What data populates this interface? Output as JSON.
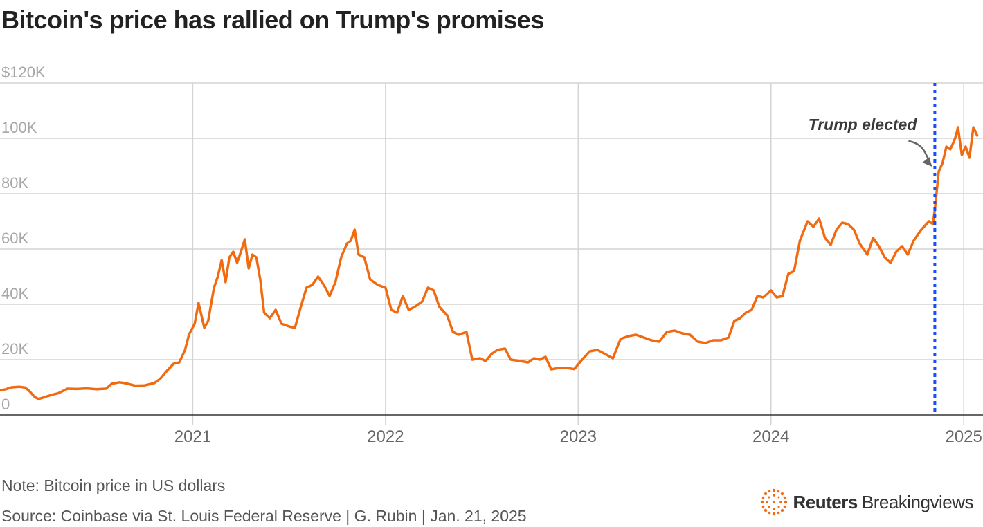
{
  "header": {
    "title": "Bitcoin's price has rallied on Trump's promises"
  },
  "footer": {
    "note": "Note: Bitcoin price in US dollars",
    "source": "Source: Coinbase via St. Louis Federal Reserve | G. Rubin | Jan. 21, 2025",
    "brand_primary": "Reuters",
    "brand_secondary": "Breakingviews"
  },
  "colors": {
    "line": "#f26a10",
    "event_line": "#1a4cff",
    "grid": "#d4d4d4",
    "axis": "#333333"
  },
  "chart_data": {
    "type": "line",
    "title": "Bitcoin's price has rallied on Trump's promises",
    "xlabel": "",
    "ylabel": "Bitcoin price in US dollars",
    "ylim": [
      0,
      120000
    ],
    "y_ticks": [
      {
        "value": 0,
        "label": "0"
      },
      {
        "value": 20000,
        "label": "20K"
      },
      {
        "value": 40000,
        "label": "40K"
      },
      {
        "value": 60000,
        "label": "60K"
      },
      {
        "value": 80000,
        "label": "80K"
      },
      {
        "value": 100000,
        "label": "100K"
      },
      {
        "value": 120000,
        "label": "$120K"
      }
    ],
    "xlim": [
      2020.0,
      2025.1
    ],
    "x_ticks": [
      {
        "value": 2021,
        "label": "2021"
      },
      {
        "value": 2022,
        "label": "2022"
      },
      {
        "value": 2023,
        "label": "2023"
      },
      {
        "value": 2024,
        "label": "2024"
      },
      {
        "value": 2025,
        "label": "2025"
      }
    ],
    "annotation": {
      "label": "Trump elected",
      "x": 2024.85
    },
    "series": [
      {
        "name": "Bitcoin price",
        "points": [
          [
            2020.0,
            8900
          ],
          [
            2020.03,
            9300
          ],
          [
            2020.06,
            10000
          ],
          [
            2020.1,
            10200
          ],
          [
            2020.13,
            9900
          ],
          [
            2020.15,
            8800
          ],
          [
            2020.18,
            6500
          ],
          [
            2020.2,
            5800
          ],
          [
            2020.22,
            6200
          ],
          [
            2020.25,
            6900
          ],
          [
            2020.28,
            7500
          ],
          [
            2020.3,
            7800
          ],
          [
            2020.33,
            8800
          ],
          [
            2020.35,
            9500
          ],
          [
            2020.4,
            9400
          ],
          [
            2020.45,
            9600
          ],
          [
            2020.5,
            9300
          ],
          [
            2020.55,
            9500
          ],
          [
            2020.58,
            11300
          ],
          [
            2020.62,
            11800
          ],
          [
            2020.65,
            11500
          ],
          [
            2020.7,
            10600
          ],
          [
            2020.75,
            10700
          ],
          [
            2020.8,
            11500
          ],
          [
            2020.83,
            13000
          ],
          [
            2020.86,
            15500
          ],
          [
            2020.9,
            18500
          ],
          [
            2020.93,
            19000
          ],
          [
            2020.96,
            23500
          ],
          [
            2020.98,
            29000
          ],
          [
            2021.01,
            33000
          ],
          [
            2021.03,
            40500
          ],
          [
            2021.06,
            31500
          ],
          [
            2021.08,
            34000
          ],
          [
            2021.11,
            46000
          ],
          [
            2021.13,
            50000
          ],
          [
            2021.15,
            56000
          ],
          [
            2021.17,
            48000
          ],
          [
            2021.19,
            57000
          ],
          [
            2021.21,
            59000
          ],
          [
            2021.23,
            55000
          ],
          [
            2021.25,
            59000
          ],
          [
            2021.27,
            63500
          ],
          [
            2021.29,
            53000
          ],
          [
            2021.31,
            58000
          ],
          [
            2021.33,
            57000
          ],
          [
            2021.35,
            49000
          ],
          [
            2021.37,
            37000
          ],
          [
            2021.4,
            35000
          ],
          [
            2021.43,
            38000
          ],
          [
            2021.46,
            33000
          ],
          [
            2021.5,
            32000
          ],
          [
            2021.53,
            31500
          ],
          [
            2021.56,
            39000
          ],
          [
            2021.59,
            46000
          ],
          [
            2021.62,
            47000
          ],
          [
            2021.65,
            50000
          ],
          [
            2021.68,
            47000
          ],
          [
            2021.71,
            43000
          ],
          [
            2021.74,
            48000
          ],
          [
            2021.77,
            57000
          ],
          [
            2021.8,
            62000
          ],
          [
            2021.82,
            63000
          ],
          [
            2021.84,
            67000
          ],
          [
            2021.86,
            58000
          ],
          [
            2021.89,
            57000
          ],
          [
            2021.92,
            49000
          ],
          [
            2021.96,
            47000
          ],
          [
            2022.0,
            46000
          ],
          [
            2022.03,
            38000
          ],
          [
            2022.06,
            37000
          ],
          [
            2022.09,
            43000
          ],
          [
            2022.12,
            38000
          ],
          [
            2022.15,
            39000
          ],
          [
            2022.19,
            41000
          ],
          [
            2022.22,
            46000
          ],
          [
            2022.25,
            45000
          ],
          [
            2022.28,
            39000
          ],
          [
            2022.32,
            36000
          ],
          [
            2022.35,
            30000
          ],
          [
            2022.38,
            29000
          ],
          [
            2022.42,
            30000
          ],
          [
            2022.45,
            20000
          ],
          [
            2022.49,
            20500
          ],
          [
            2022.52,
            19500
          ],
          [
            2022.55,
            22000
          ],
          [
            2022.58,
            23500
          ],
          [
            2022.62,
            24000
          ],
          [
            2022.65,
            20000
          ],
          [
            2022.7,
            19500
          ],
          [
            2022.74,
            19000
          ],
          [
            2022.77,
            20500
          ],
          [
            2022.8,
            20000
          ],
          [
            2022.83,
            21000
          ],
          [
            2022.86,
            16500
          ],
          [
            2022.9,
            17000
          ],
          [
            2022.94,
            17000
          ],
          [
            2022.98,
            16600
          ],
          [
            2023.02,
            20000
          ],
          [
            2023.06,
            23000
          ],
          [
            2023.1,
            23500
          ],
          [
            2023.14,
            22000
          ],
          [
            2023.18,
            20500
          ],
          [
            2023.22,
            27500
          ],
          [
            2023.26,
            28500
          ],
          [
            2023.3,
            29000
          ],
          [
            2023.34,
            28000
          ],
          [
            2023.38,
            27000
          ],
          [
            2023.42,
            26500
          ],
          [
            2023.46,
            30000
          ],
          [
            2023.5,
            30500
          ],
          [
            2023.54,
            29500
          ],
          [
            2023.58,
            29000
          ],
          [
            2023.62,
            26500
          ],
          [
            2023.66,
            26000
          ],
          [
            2023.7,
            27000
          ],
          [
            2023.74,
            27000
          ],
          [
            2023.78,
            28000
          ],
          [
            2023.81,
            34000
          ],
          [
            2023.84,
            35000
          ],
          [
            2023.87,
            37000
          ],
          [
            2023.9,
            38000
          ],
          [
            2023.93,
            43000
          ],
          [
            2023.96,
            42500
          ],
          [
            2024.0,
            45000
          ],
          [
            2024.03,
            42500
          ],
          [
            2024.06,
            43000
          ],
          [
            2024.09,
            51000
          ],
          [
            2024.12,
            52000
          ],
          [
            2024.15,
            63000
          ],
          [
            2024.19,
            70000
          ],
          [
            2024.22,
            68000
          ],
          [
            2024.25,
            71000
          ],
          [
            2024.28,
            64000
          ],
          [
            2024.31,
            61500
          ],
          [
            2024.34,
            67000
          ],
          [
            2024.37,
            69500
          ],
          [
            2024.4,
            69000
          ],
          [
            2024.43,
            67000
          ],
          [
            2024.46,
            62000
          ],
          [
            2024.5,
            58000
          ],
          [
            2024.53,
            64000
          ],
          [
            2024.56,
            61000
          ],
          [
            2024.59,
            57000
          ],
          [
            2024.62,
            55000
          ],
          [
            2024.65,
            59000
          ],
          [
            2024.68,
            61000
          ],
          [
            2024.71,
            58000
          ],
          [
            2024.74,
            63000
          ],
          [
            2024.78,
            67000
          ],
          [
            2024.82,
            70000
          ],
          [
            2024.84,
            69000
          ],
          [
            2024.85,
            74000
          ],
          [
            2024.87,
            88000
          ],
          [
            2024.89,
            91000
          ],
          [
            2024.91,
            97000
          ],
          [
            2024.93,
            96000
          ],
          [
            2024.95,
            99000
          ],
          [
            2024.96,
            101000
          ],
          [
            2024.97,
            104000
          ],
          [
            2024.99,
            94000
          ],
          [
            2025.01,
            97000
          ],
          [
            2025.03,
            93000
          ],
          [
            2025.05,
            104000
          ],
          [
            2025.07,
            101000
          ]
        ]
      }
    ]
  }
}
